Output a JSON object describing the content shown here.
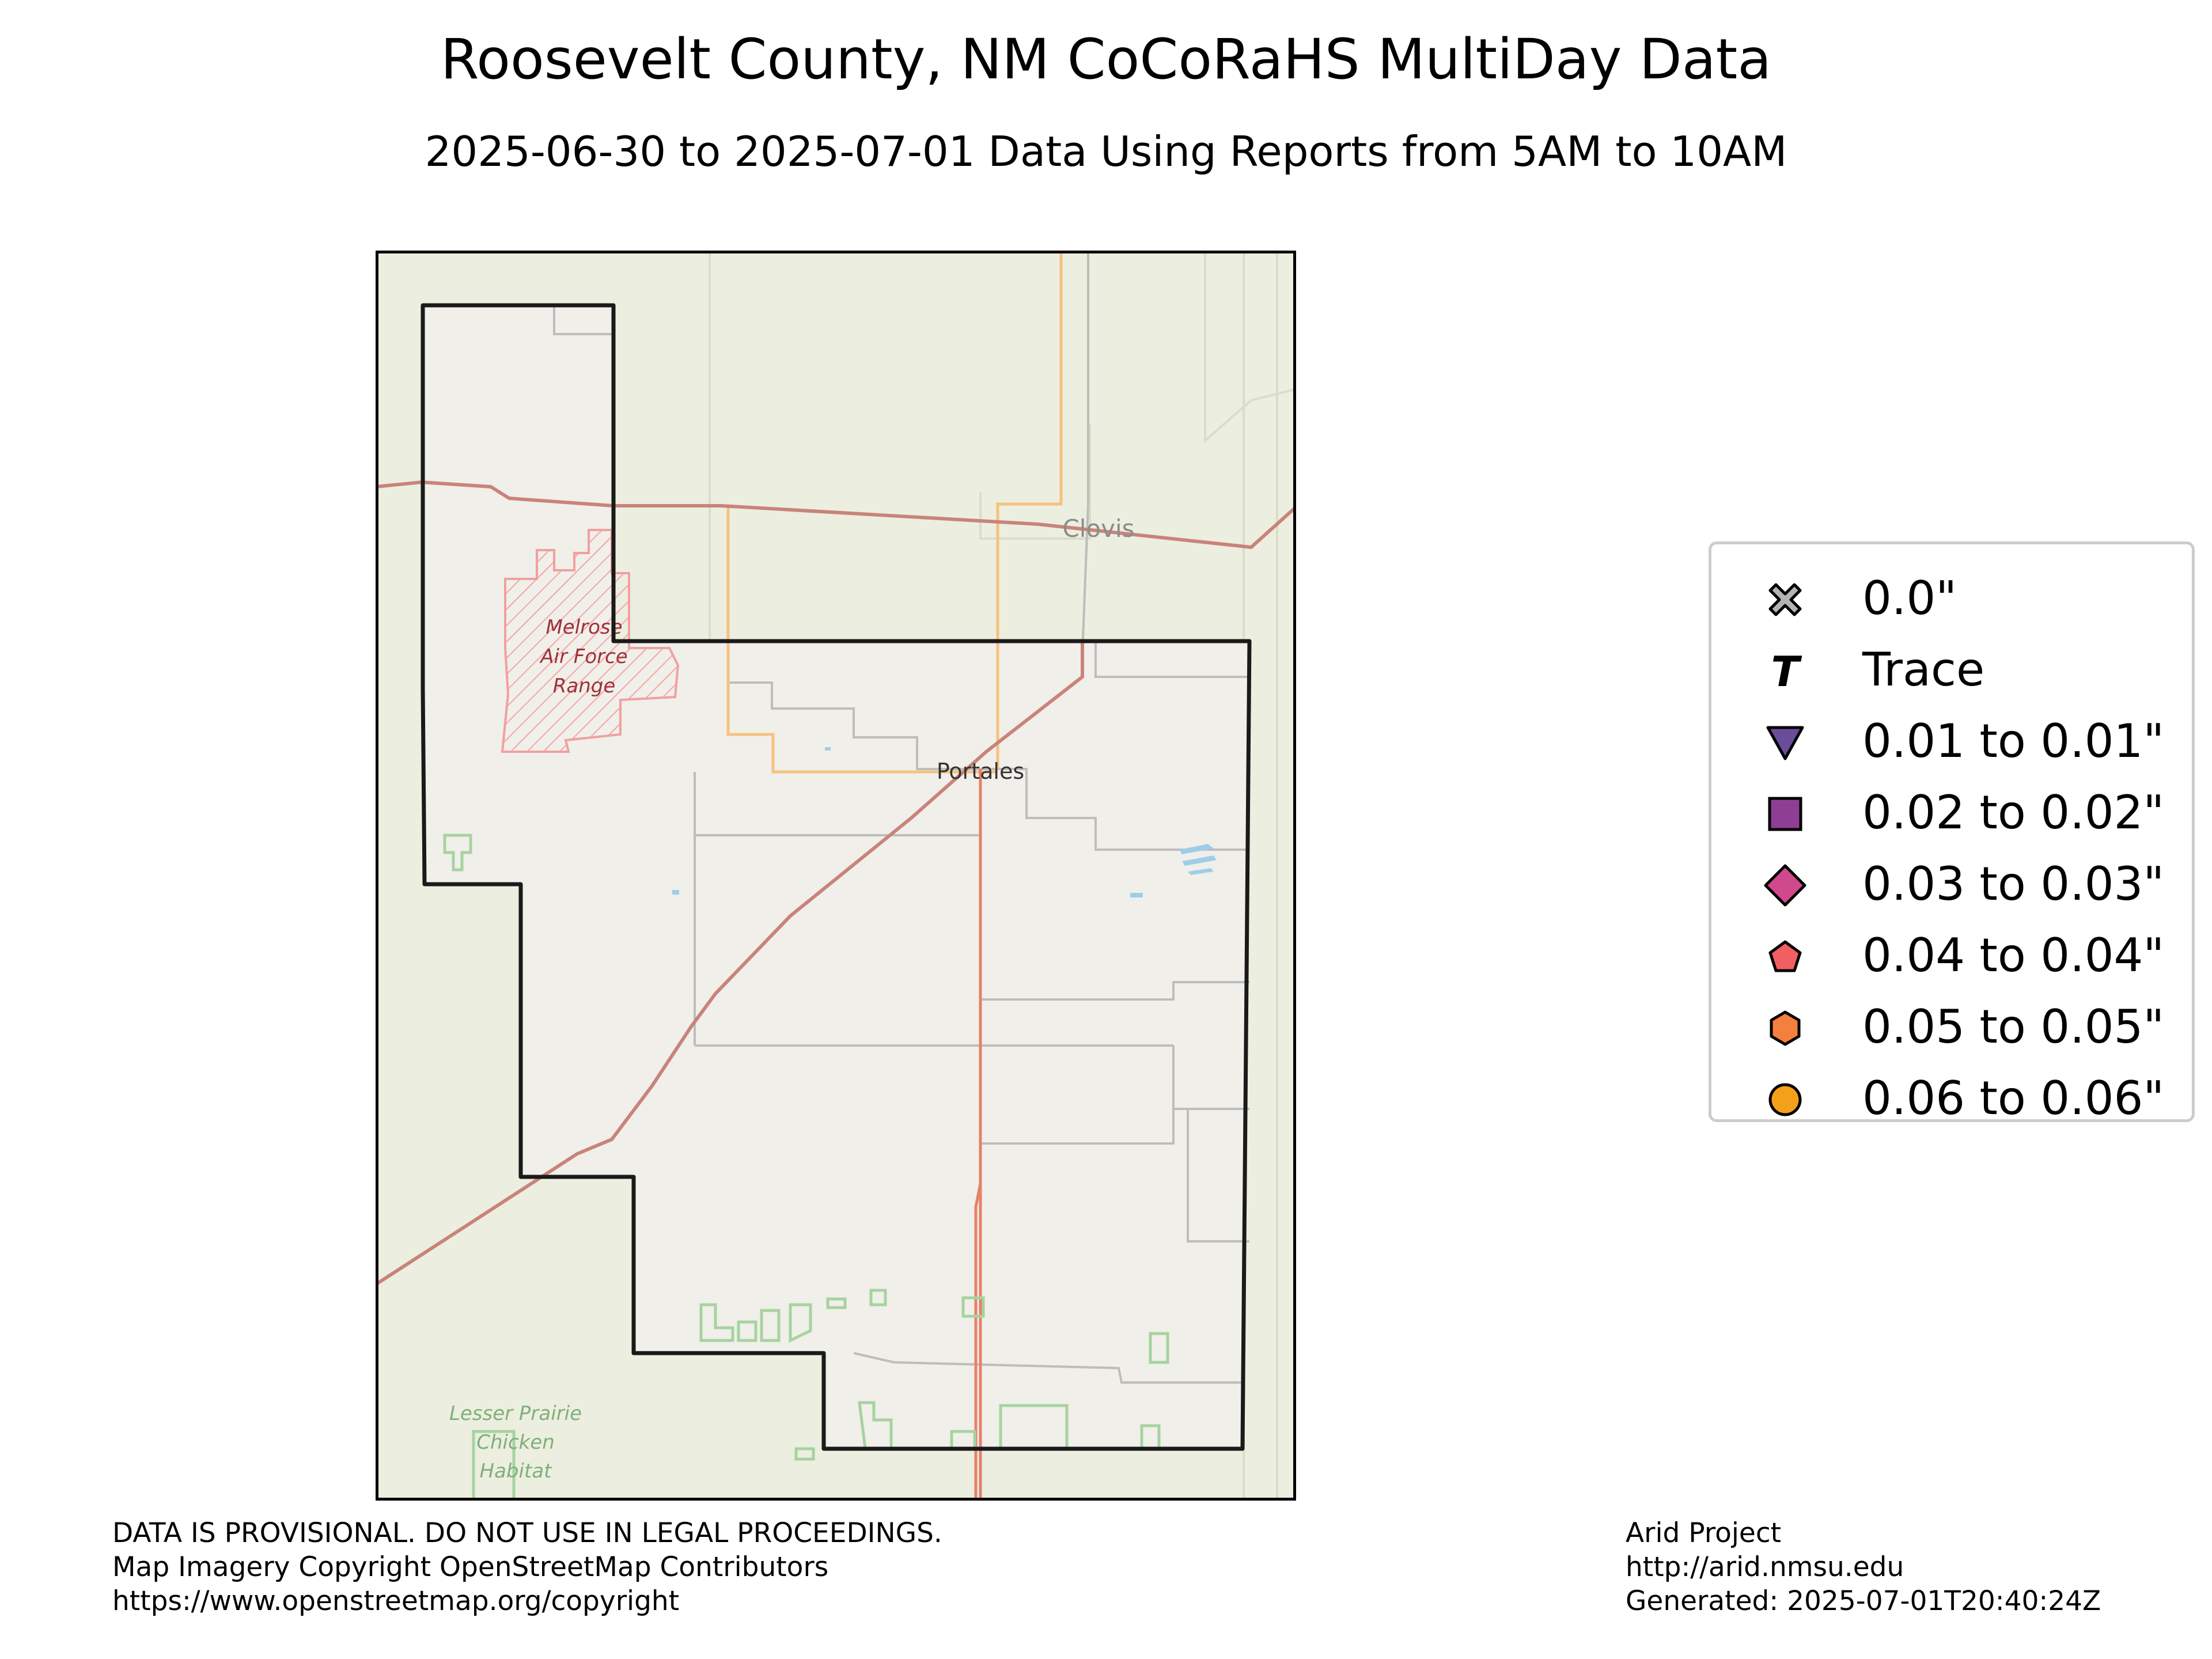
{
  "title": "Roosevelt County, NM CoCoRaHS MultiDay Data",
  "subtitle": "2025-06-30 to 2025-07-01 Data Using Reports from 5AM to 10AM",
  "map": {
    "place_labels": {
      "clovis": "Clovis",
      "portales": "Portales",
      "melrose_line1": "Melrose",
      "melrose_line2": "Air Force",
      "melrose_line3": "Range",
      "prairie_line1": "Lesser Prairie",
      "prairie_line2": "Chicken",
      "prairie_line3": "Habitat"
    },
    "colors": {
      "background": "#eceedf",
      "county_fill": "#f1efe9",
      "county_outline": "#1a1a1a",
      "highway": "#e5816a",
      "secondary_road": "#f5c27e",
      "minor_road": "#bdbdbd",
      "protected_area": "#a6d3a0",
      "military": "#f0a0a0",
      "water": "#9fcde8"
    }
  },
  "legend": {
    "items": [
      {
        "label": "0.0\"",
        "icon": "x-marker-icon",
        "color": "#b3b3b3"
      },
      {
        "label": "Trace",
        "icon": "trace-t-icon",
        "color": "#000000"
      },
      {
        "label": "0.01 to 0.01\"",
        "icon": "triangle-down-icon",
        "color": "#6b4c9a"
      },
      {
        "label": "0.02 to 0.02\"",
        "icon": "square-icon",
        "color": "#8e3f93"
      },
      {
        "label": "0.03 to 0.03\"",
        "icon": "diamond-icon",
        "color": "#d1498d"
      },
      {
        "label": "0.04 to 0.04\"",
        "icon": "pentagon-icon",
        "color": "#f15f61"
      },
      {
        "label": "0.05 to 0.05\"",
        "icon": "hexagon-icon",
        "color": "#f57f3c"
      },
      {
        "label": "0.06 to 0.06\"",
        "icon": "circle-icon",
        "color": "#f5a01a"
      }
    ]
  },
  "footer_left": {
    "line1": "DATA IS PROVISIONAL. DO NOT USE IN LEGAL PROCEEDINGS.",
    "line2": "Map Imagery Copyright OpenStreetMap Contributors",
    "line3": "https://www.openstreetmap.org/copyright"
  },
  "footer_right": {
    "line1": "Arid Project",
    "line2": "http://arid.nmsu.edu",
    "line3": "Generated: 2025-07-01T20:40:24Z"
  }
}
